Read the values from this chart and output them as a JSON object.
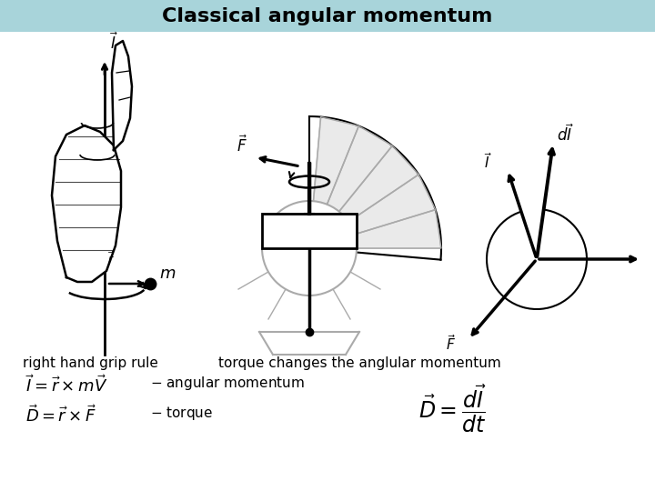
{
  "title": "Classical angular momentum",
  "title_bg_color": "#a8d4da",
  "bg_color": "#ffffff",
  "title_fontsize": 16,
  "label_right_hand": "right hand grip rule",
  "label_torque": "torque changes the anglular momentum",
  "gray_color": "#aaaaaa"
}
